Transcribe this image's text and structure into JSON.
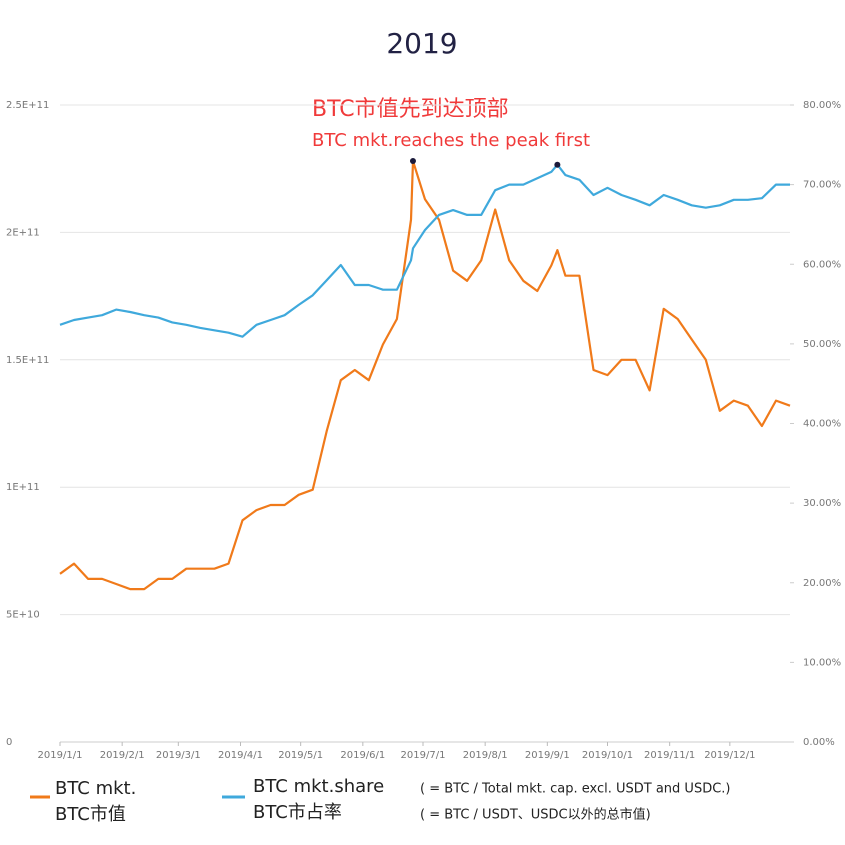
{
  "chart_data": {
    "type": "line",
    "title": "2019",
    "annotation": [
      "BTC市值先到达顶部",
      "BTC mkt.reaches the peak first"
    ],
    "x": [
      "2019/1/1",
      "2019/1/8",
      "2019/1/15",
      "2019/1/22",
      "2019/1/29",
      "2019/2/5",
      "2019/2/12",
      "2019/2/19",
      "2019/2/26",
      "2019/3/5",
      "2019/3/12",
      "2019/3/19",
      "2019/3/26",
      "2019/4/2",
      "2019/4/9",
      "2019/4/16",
      "2019/4/23",
      "2019/4/30",
      "2019/5/7",
      "2019/5/14",
      "2019/5/21",
      "2019/5/28",
      "2019/6/4",
      "2019/6/11",
      "2019/6/18",
      "2019/6/25",
      "2019/6/26",
      "2019/7/2",
      "2019/7/9",
      "2019/7/16",
      "2019/7/23",
      "2019/7/30",
      "2019/8/6",
      "2019/8/13",
      "2019/8/20",
      "2019/8/27",
      "2019/9/3",
      "2019/9/6",
      "2019/9/10",
      "2019/9/17",
      "2019/9/24",
      "2019/10/1",
      "2019/10/8",
      "2019/10/15",
      "2019/10/22",
      "2019/10/29",
      "2019/11/5",
      "2019/11/12",
      "2019/11/19",
      "2019/11/26",
      "2019/12/3",
      "2019/12/10",
      "2019/12/17",
      "2019/12/24",
      "2019/12/31"
    ],
    "xlim": [
      "2019/1/1",
      "2019/12/31"
    ],
    "xticks": [
      "2019/1/1",
      "2019/2/1",
      "2019/3/1",
      "2019/4/1",
      "2019/5/1",
      "2019/6/1",
      "2019/7/1",
      "2019/8/1",
      "2019/9/1",
      "2019/10/1",
      "2019/11/1",
      "2019/12/1"
    ],
    "ylim": [
      0,
      250000000000.0
    ],
    "yticks": [
      0,
      {
        "value": 50000000000.0,
        "label": "5E+10"
      },
      {
        "value": 100000000000.0,
        "label": "1E+11"
      },
      {
        "value": 150000000000.0,
        "label": "1.5E+11"
      },
      {
        "value": 200000000000.0,
        "label": "2E+11"
      },
      {
        "value": 250000000000.0,
        "label": "2.5E+11"
      }
    ],
    "y2lim": [
      0,
      80
    ],
    "y2ticks": [
      {
        "value": 0,
        "label": "0.00%"
      },
      {
        "value": 10,
        "label": "10.00%"
      },
      {
        "value": 20,
        "label": "20.00%"
      },
      {
        "value": 30,
        "label": "30.00%"
      },
      {
        "value": 40,
        "label": "40.00%"
      },
      {
        "value": 50,
        "label": "50.00%"
      },
      {
        "value": 60,
        "label": "60.00%"
      },
      {
        "value": 70,
        "label": "70.00%"
      },
      {
        "value": 80,
        "label": "80.00%"
      }
    ],
    "grid": true,
    "series": [
      {
        "name": "BTC mkt.",
        "name_cn": "BTC市值",
        "color": "#f07a1a",
        "values": [
          66000000000.0,
          70000000000.0,
          64000000000.0,
          64000000000.0,
          62000000000.0,
          60000000000.0,
          60000000000.0,
          64000000000.0,
          64000000000.0,
          68000000000.0,
          68000000000.0,
          68000000000.0,
          70000000000.0,
          87000000000.0,
          91000000000.0,
          93000000000.0,
          93000000000.0,
          97000000000.0,
          99000000000.0,
          122000000000.0,
          142000000000.0,
          146000000000.0,
          142000000000.0,
          156000000000.0,
          166000000000.0,
          205000000000.0,
          228000000000.0,
          213000000000.0,
          205000000000.0,
          185000000000.0,
          181000000000.0,
          189000000000.0,
          209000000000.0,
          189000000000.0,
          181000000000.0,
          177000000000.0,
          187000000000.0,
          193000000000.0,
          183000000000.0,
          183000000000.0,
          146000000000.0,
          144000000000.0,
          150000000000.0,
          150000000000.0,
          138000000000.0,
          170000000000.0,
          166000000000.0,
          158000000000.0,
          150000000000.0,
          130000000000.0,
          134000000000.0,
          132000000000.0,
          124000000000.0,
          134000000000.0,
          132000000000.0
        ]
      },
      {
        "name": "BTC mkt.share",
        "name_cn": "BTC市占率",
        "color": "#3fa9dc",
        "axis": "y2",
        "note": "( = BTC / Total mkt. cap. excl. USDT and USDC.)",
        "note_cn": "( = BTC / USDT、USDC以外的总市值)",
        "values": [
          52.4,
          53.0,
          53.3,
          53.6,
          54.3,
          54.0,
          53.6,
          53.3,
          52.7,
          52.4,
          52.0,
          51.7,
          51.4,
          50.9,
          52.4,
          53.0,
          53.6,
          54.9,
          56.1,
          58.0,
          59.9,
          57.4,
          57.4,
          56.8,
          56.8,
          60.5,
          62.0,
          64.3,
          66.2,
          66.8,
          66.2,
          66.2,
          69.3,
          70.0,
          70.0,
          70.8,
          71.6,
          72.5,
          71.2,
          70.6,
          68.7,
          69.6,
          68.7,
          68.1,
          67.4,
          68.7,
          68.1,
          67.4,
          67.1,
          67.4,
          68.1,
          68.1,
          68.3,
          70.0,
          70.0
        ]
      }
    ]
  }
}
